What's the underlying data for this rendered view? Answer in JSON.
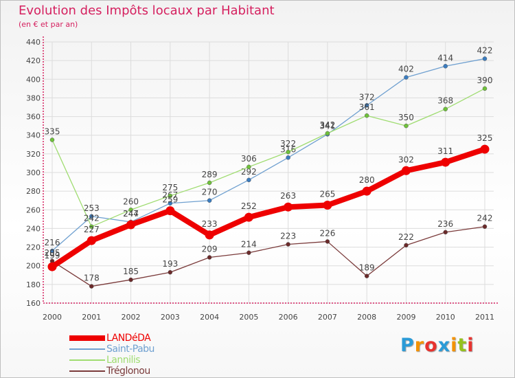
{
  "header": {
    "title": "Evolution des Impôts locaux par Habitant",
    "subtitle": "(en € et par an)"
  },
  "colors": {
    "title": "#d5205f",
    "axis": "#d5205f",
    "grid": "#dcdcdc",
    "labels": "#444444"
  },
  "brand": {
    "letters": [
      "P",
      "r",
      "o",
      "x",
      "i",
      "t",
      "i"
    ],
    "letter_colors": [
      "#2b9bd7",
      "#f39200",
      "#e7332f",
      "#2b9bd7",
      "#f39200",
      "#95c11f",
      "#e7332f"
    ]
  },
  "chart_data": {
    "type": "line",
    "title": "Evolution des Impôts locaux par Habitant",
    "subtitle": "(en € et par an)",
    "xlabel": "",
    "ylabel": "",
    "x": [
      "2000",
      "2001",
      "2002",
      "2003",
      "2004",
      "2005",
      "2006",
      "2007",
      "2008",
      "2009",
      "2010",
      "2011"
    ],
    "ylim": [
      160,
      440
    ],
    "yticks": [
      160,
      180,
      200,
      220,
      240,
      260,
      280,
      300,
      320,
      340,
      360,
      380,
      400,
      420,
      440
    ],
    "grid": true,
    "legend_position": "bottom-left",
    "series": [
      {
        "name": "Saint-Pabu",
        "color": "#6fa0d0",
        "marker_color": "#3a7cc0",
        "emphasis": false,
        "values": [
          216,
          253,
          247,
          267,
          270,
          292,
          316,
          341,
          372,
          402,
          414,
          422
        ]
      },
      {
        "name": "Lannilis",
        "color": "#9fdc70",
        "marker_color": "#6fc23a",
        "emphasis": false,
        "values": [
          335,
          242,
          260,
          275,
          289,
          306,
          322,
          342,
          361,
          350,
          368,
          390
        ]
      },
      {
        "name": "Tréglonou",
        "color": "#7a3a3a",
        "marker_color": "#6b2a2a",
        "emphasis": false,
        "values": [
          205,
          178,
          185,
          193,
          209,
          214,
          223,
          226,
          189,
          222,
          236,
          242
        ]
      },
      {
        "name": "LANDéDA",
        "color": "#ee0000",
        "marker_color": "#ee0000",
        "emphasis": true,
        "values": [
          199,
          227,
          244,
          259,
          233,
          252,
          263,
          265,
          280,
          302,
          311,
          325
        ]
      }
    ],
    "legend_order": [
      "LANDéDA",
      "Saint-Pabu",
      "Lannilis",
      "Tréglonou"
    ]
  }
}
